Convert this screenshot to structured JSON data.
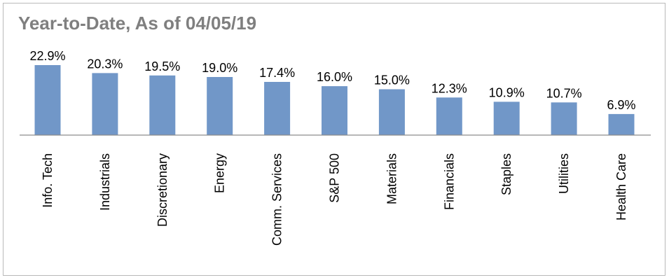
{
  "chart_data": {
    "type": "bar",
    "title": "Year-to-Date, As of 04/05/19",
    "categories": [
      "Info. Tech",
      "Industrials",
      "Discretionary",
      "Energy",
      "Comm. Services",
      "S&P 500",
      "Materials",
      "Financials",
      "Staples",
      "Utilities",
      "Health Care"
    ],
    "values": [
      22.9,
      20.3,
      19.5,
      19.0,
      17.4,
      16.0,
      15.0,
      12.3,
      10.9,
      10.7,
      6.9
    ],
    "data_labels": [
      "22.9%",
      "20.3%",
      "19.5%",
      "19.0%",
      "17.4%",
      "16.0%",
      "15.0%",
      "12.3%",
      "10.9%",
      "10.7%",
      "6.9%"
    ],
    "xlabel": "",
    "ylabel": "",
    "ylim": [
      0,
      22.9
    ],
    "grid": false,
    "legend": "none",
    "bar_color": "#7197c8",
    "title_color": "#7f7f7f"
  }
}
